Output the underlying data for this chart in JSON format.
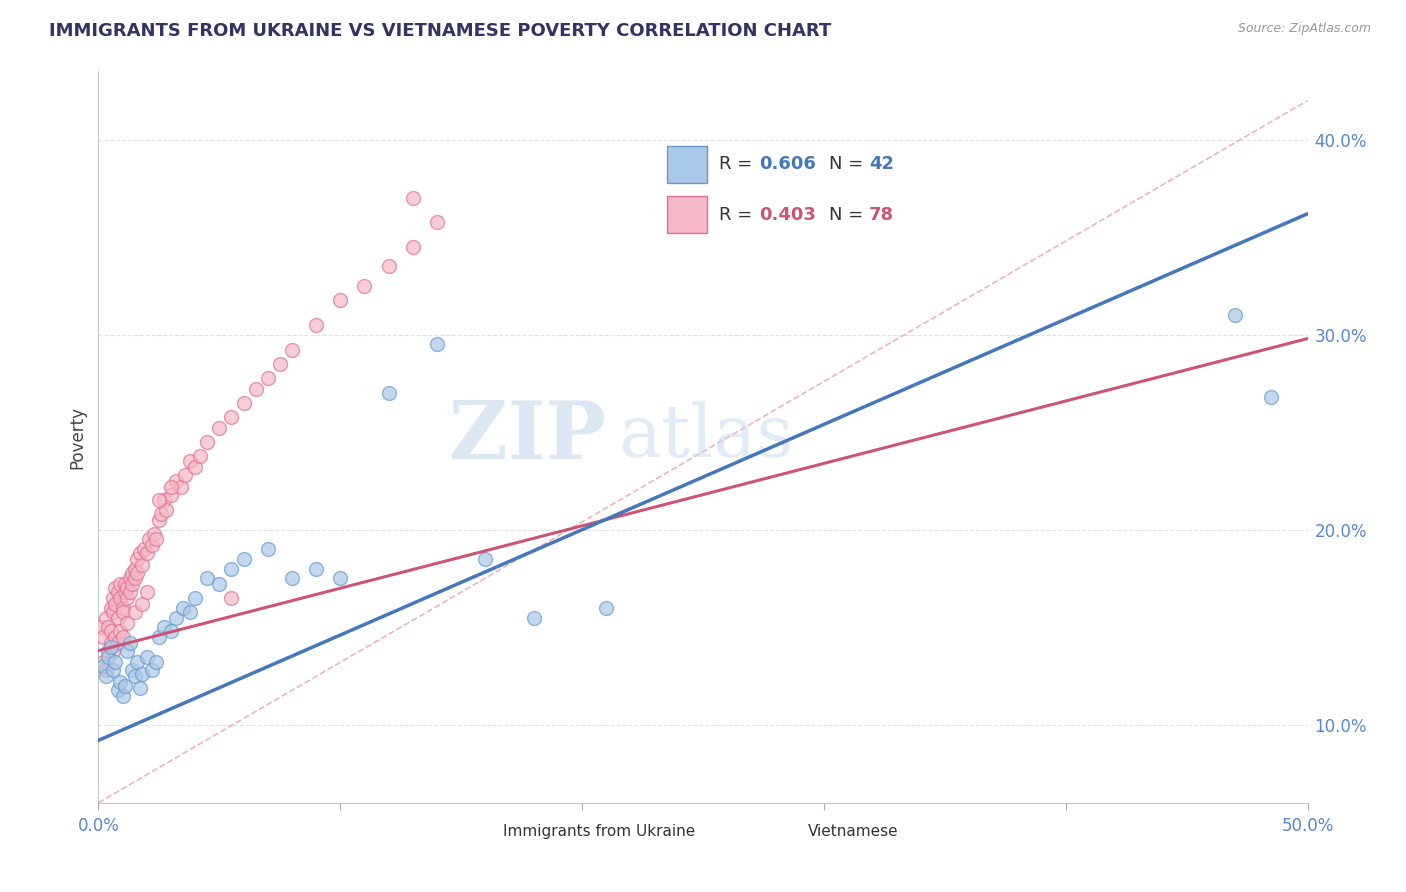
{
  "title": "IMMIGRANTS FROM UKRAINE VS VIETNAMESE POVERTY CORRELATION CHART",
  "source": "Source: ZipAtlas.com",
  "ylabel": "Poverty",
  "watermark": "ZIPatlas",
  "legend1_label": "Immigrants from Ukraine",
  "legend1_R": "R = 0.606",
  "legend1_N": "N = 42",
  "legend2_label": "Vietnamese",
  "legend2_R": "R = 0.403",
  "legend2_N": "N = 78",
  "blue_fill": "#aac8e8",
  "blue_edge": "#6699cc",
  "pink_fill": "#f4b8c8",
  "pink_edge": "#e07090",
  "blue_line_color": "#4477bb",
  "pink_line_color": "#cc5577",
  "ref_line_color": "#e8a0b0",
  "title_color": "#333366",
  "axis_label_color": "#5588cc",
  "xmin": 0.0,
  "xmax": 0.5,
  "ymin": 0.06,
  "ymax": 0.435,
  "yticks": [
    0.1,
    0.2,
    0.3,
    0.4
  ],
  "ytick_labels": [
    "10.0%",
    "20.0%",
    "30.0%",
    "40.0%"
  ],
  "blue_scatter_x": [
    0.002,
    0.003,
    0.004,
    0.005,
    0.006,
    0.007,
    0.008,
    0.009,
    0.01,
    0.011,
    0.012,
    0.013,
    0.014,
    0.015,
    0.016,
    0.017,
    0.018,
    0.02,
    0.022,
    0.024,
    0.025,
    0.027,
    0.03,
    0.032,
    0.035,
    0.038,
    0.04,
    0.045,
    0.05,
    0.055,
    0.06,
    0.07,
    0.08,
    0.09,
    0.1,
    0.12,
    0.14,
    0.16,
    0.18,
    0.21,
    0.47,
    0.485
  ],
  "blue_scatter_y": [
    0.13,
    0.125,
    0.135,
    0.14,
    0.128,
    0.132,
    0.118,
    0.122,
    0.115,
    0.12,
    0.138,
    0.142,
    0.128,
    0.125,
    0.132,
    0.119,
    0.126,
    0.135,
    0.128,
    0.132,
    0.145,
    0.15,
    0.148,
    0.155,
    0.16,
    0.158,
    0.165,
    0.175,
    0.172,
    0.18,
    0.185,
    0.19,
    0.175,
    0.18,
    0.175,
    0.27,
    0.295,
    0.185,
    0.155,
    0.16,
    0.31,
    0.268
  ],
  "pink_scatter_x": [
    0.001,
    0.002,
    0.003,
    0.004,
    0.005,
    0.005,
    0.006,
    0.006,
    0.007,
    0.007,
    0.008,
    0.008,
    0.009,
    0.009,
    0.01,
    0.01,
    0.011,
    0.011,
    0.012,
    0.012,
    0.013,
    0.013,
    0.014,
    0.014,
    0.015,
    0.015,
    0.016,
    0.016,
    0.017,
    0.018,
    0.019,
    0.02,
    0.021,
    0.022,
    0.023,
    0.024,
    0.025,
    0.026,
    0.027,
    0.028,
    0.03,
    0.032,
    0.034,
    0.036,
    0.038,
    0.04,
    0.042,
    0.045,
    0.05,
    0.055,
    0.06,
    0.065,
    0.07,
    0.075,
    0.08,
    0.09,
    0.1,
    0.11,
    0.12,
    0.13,
    0.002,
    0.003,
    0.004,
    0.005,
    0.006,
    0.007,
    0.008,
    0.009,
    0.01,
    0.012,
    0.015,
    0.018,
    0.02,
    0.025,
    0.03,
    0.055,
    0.13,
    0.14
  ],
  "pink_scatter_y": [
    0.15,
    0.145,
    0.155,
    0.15,
    0.16,
    0.148,
    0.158,
    0.165,
    0.162,
    0.17,
    0.168,
    0.155,
    0.172,
    0.165,
    0.16,
    0.158,
    0.168,
    0.172,
    0.165,
    0.17,
    0.175,
    0.168,
    0.178,
    0.172,
    0.18,
    0.175,
    0.178,
    0.185,
    0.188,
    0.182,
    0.19,
    0.188,
    0.195,
    0.192,
    0.198,
    0.195,
    0.205,
    0.208,
    0.215,
    0.21,
    0.218,
    0.225,
    0.222,
    0.228,
    0.235,
    0.232,
    0.238,
    0.245,
    0.252,
    0.258,
    0.265,
    0.272,
    0.278,
    0.285,
    0.292,
    0.305,
    0.318,
    0.325,
    0.335,
    0.345,
    0.132,
    0.128,
    0.138,
    0.142,
    0.138,
    0.145,
    0.142,
    0.148,
    0.145,
    0.152,
    0.158,
    0.162,
    0.168,
    0.215,
    0.222,
    0.165,
    0.37,
    0.358
  ],
  "blue_line_x": [
    0.0,
    0.5
  ],
  "blue_line_y": [
    0.092,
    0.362
  ],
  "pink_line_x": [
    0.0,
    0.5
  ],
  "pink_line_y": [
    0.138,
    0.298
  ],
  "ref_line_x": [
    0.0,
    0.5
  ],
  "ref_line_y": [
    0.06,
    0.42
  ]
}
